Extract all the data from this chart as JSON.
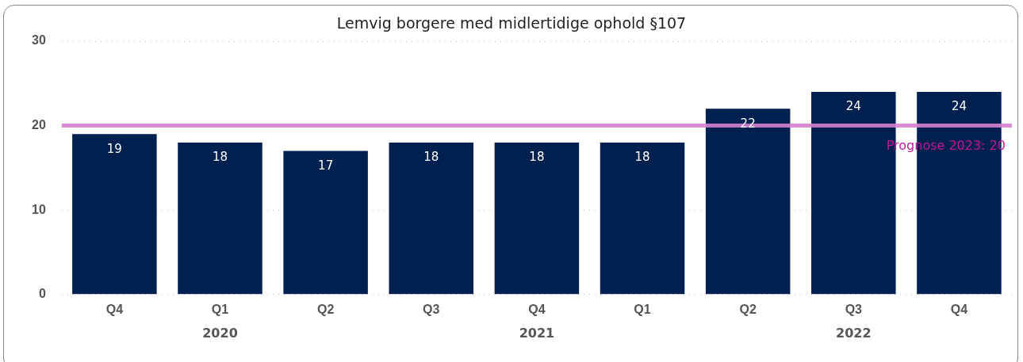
{
  "chart_data": {
    "type": "bar",
    "title": "Lemvig borgere med midlertidige ophold §107",
    "categories": [
      "Q4",
      "Q1",
      "Q2",
      "Q3",
      "Q4",
      "Q1",
      "Q2",
      "Q3",
      "Q4"
    ],
    "values": [
      19,
      18,
      17,
      18,
      18,
      18,
      22,
      24,
      24
    ],
    "color": "#002050",
    "ylim": [
      0,
      30
    ],
    "yticks": [
      0,
      10,
      20,
      30
    ],
    "grid": "y",
    "legend": false,
    "data_labels": true,
    "ref_lines": [
      {
        "axis": "y",
        "value": 20,
        "label": "Prognose 2023: 20",
        "color": "#d67fd0"
      }
    ],
    "annotations": [
      "2020",
      "2021",
      "2022"
    ]
  }
}
